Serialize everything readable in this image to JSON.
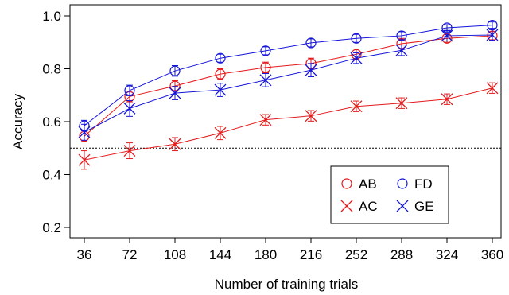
{
  "chart_data": {
    "type": "line",
    "x": [
      36,
      72,
      108,
      144,
      180,
      216,
      252,
      288,
      324,
      360
    ],
    "xticks": [
      "36",
      "72",
      "108",
      "144",
      "180",
      "216",
      "252",
      "288",
      "324",
      "360"
    ],
    "yticks": [
      "0.2",
      "0.4",
      "0.6",
      "0.8",
      "1.0"
    ],
    "ytick_values": [
      0.2,
      0.4,
      0.6,
      0.8,
      1.0
    ],
    "xlabel": "Number of training trials",
    "ylabel": "Accuracy",
    "ylim": [
      0.17,
      1.02
    ],
    "reference_line": 0.5,
    "grid": false,
    "legend_position": "lower-right",
    "series": [
      {
        "name": "AB",
        "marker": "circle",
        "color": "#e41a1c",
        "values": [
          0.545,
          0.695,
          0.735,
          0.78,
          0.805,
          0.82,
          0.855,
          0.895,
          0.915,
          0.925
        ],
        "err": [
          0.02,
          0.02,
          0.02,
          0.02,
          0.02,
          0.02,
          0.02,
          0.02,
          0.015,
          0.015
        ]
      },
      {
        "name": "FD",
        "marker": "circle",
        "color": "#1515d8",
        "values": [
          0.585,
          0.718,
          0.792,
          0.84,
          0.868,
          0.898,
          0.915,
          0.925,
          0.955,
          0.965
        ],
        "err": [
          0.02,
          0.02,
          0.02,
          0.015,
          0.015,
          0.015,
          0.015,
          0.015,
          0.012,
          0.012
        ]
      },
      {
        "name": "AC",
        "marker": "x",
        "color": "#e41a1c",
        "values": [
          0.455,
          0.49,
          0.515,
          0.557,
          0.607,
          0.622,
          0.658,
          0.67,
          0.685,
          0.727
        ],
        "err": [
          0.035,
          0.03,
          0.025,
          0.025,
          0.02,
          0.02,
          0.02,
          0.02,
          0.02,
          0.02
        ]
      },
      {
        "name": "GE",
        "marker": "x",
        "color": "#1515d8",
        "values": [
          0.56,
          0.65,
          0.708,
          0.72,
          0.757,
          0.795,
          0.84,
          0.87,
          0.925,
          0.928
        ],
        "err": [
          0.03,
          0.03,
          0.025,
          0.025,
          0.025,
          0.025,
          0.02,
          0.02,
          0.02,
          0.02
        ]
      }
    ],
    "legend": {
      "entries": [
        "AB",
        "FD",
        "AC",
        "GE"
      ]
    }
  }
}
